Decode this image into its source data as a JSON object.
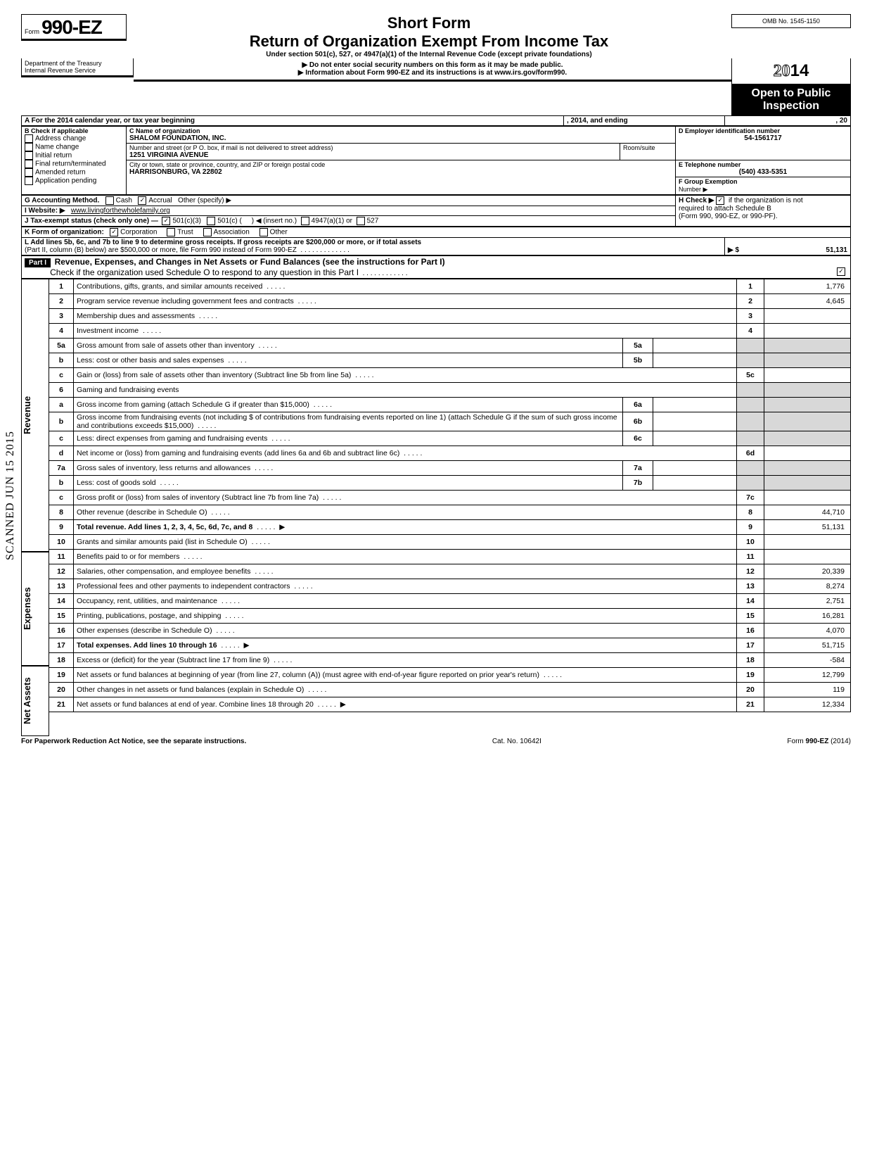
{
  "header": {
    "omb": "OMB No. 1545-1150",
    "form_word": "Form",
    "form_num": "990-EZ",
    "short_form": "Short Form",
    "title": "Return of Organization Exempt From Income Tax",
    "subtitle": "Under section 501(c), 527, or 4947(a)(1) of the Internal Revenue Code (except private foundations)",
    "instr1": "▶ Do not enter social security numbers on this form as it may be made public.",
    "instr2": "▶ Information about Form 990-EZ and its instructions is at www.irs.gov/form990.",
    "year_prefix": "20",
    "year": "14",
    "open1": "Open to Public",
    "open2": "Inspection",
    "dept1": "Department of the Treasury",
    "dept2": "Internal Revenue Service"
  },
  "scanned": "SCANNED  JUN 15 2015",
  "blockA": {
    "label": "A For the 2014 calendar year, or tax year beginning",
    "mid": ", 2014, and ending",
    "end": ", 20"
  },
  "blockB": {
    "hdr": "B Check if applicable",
    "opts": [
      "Address change",
      "Name change",
      "Initial return",
      "Final return/terminated",
      "Amended return",
      "Application pending"
    ]
  },
  "blockC": {
    "hdr": "C Name of organization",
    "name": "SHALOM FOUNDATION, INC.",
    "addr_hdr": "Number and street (or P O. box, if mail is not delivered to street address)",
    "room_hdr": "Room/suite",
    "addr": "1251 VIRGINIA AVENUE",
    "city_hdr": "City or town, state or province, country, and ZIP or foreign postal code",
    "city": "HARRISONBURG, VA 22802"
  },
  "blockD": {
    "hdr": "D Employer identification number",
    "val": "54-1561717"
  },
  "blockE": {
    "hdr": "E Telephone number",
    "val": "(540) 433-5351"
  },
  "blockF": {
    "hdr": "F Group Exemption",
    "num": "Number ▶"
  },
  "blockG": {
    "label": "G Accounting Method.",
    "cash": "Cash",
    "accrual": "Accrual",
    "other": "Other (specify) ▶"
  },
  "blockH": {
    "l1": "H Check ▶",
    "l2": "if the organization is not",
    "l3": "required to attach Schedule B",
    "l4": "(Form 990, 990-EZ, or 990-PF)."
  },
  "blockI": {
    "label": "I  Website: ▶",
    "val": "www.livingforthewholefamily.org"
  },
  "blockJ": {
    "label": "J Tax-exempt status (check only one) —",
    "o1": "501(c)(3)",
    "o2": "501(c) (",
    "o3": ") ◀ (insert no.)",
    "o4": "4947(a)(1) or",
    "o5": "527"
  },
  "blockK": {
    "label": "K Form of organization:",
    "o1": "Corporation",
    "o2": "Trust",
    "o3": "Association",
    "o4": "Other"
  },
  "blockL": {
    "l1": "L Add lines 5b, 6c, and 7b to line 9 to determine gross receipts. If gross receipts are $200,000 or more, or if total assets",
    "l2": "(Part II, column (B) below) are $500,000 or more, file Form 990 instead of Form 990-EZ",
    "arrow": "▶  $",
    "val": "51,131"
  },
  "part1": {
    "hdr": "Part I",
    "title": "Revenue, Expenses, and Changes in Net Assets or Fund Balances (see the instructions for Part I)",
    "check": "Check if the organization used Schedule O to respond to any question in this Part I"
  },
  "side": {
    "rev": "Revenue",
    "exp": "Expenses",
    "na": "Net Assets"
  },
  "lines": [
    {
      "n": "1",
      "d": "Contributions, gifts, grants, and similar amounts received",
      "r": "1",
      "v": "1,776"
    },
    {
      "n": "2",
      "d": "Program service revenue including government fees and contracts",
      "r": "2",
      "v": "4,645"
    },
    {
      "n": "3",
      "d": "Membership dues and assessments",
      "r": "3",
      "v": ""
    },
    {
      "n": "4",
      "d": "Investment income",
      "r": "4",
      "v": ""
    },
    {
      "n": "5a",
      "d": "Gross amount from sale of assets other than inventory",
      "in": "5a"
    },
    {
      "n": "b",
      "d": "Less: cost or other basis and sales expenses",
      "in": "5b"
    },
    {
      "n": "c",
      "d": "Gain or (loss) from sale of assets other than inventory (Subtract line 5b from line 5a)",
      "r": "5c",
      "v": ""
    },
    {
      "n": "6",
      "d": "Gaming and fundraising events"
    },
    {
      "n": "a",
      "d": "Gross income from gaming (attach Schedule G if greater than $15,000)",
      "in": "6a"
    },
    {
      "n": "b",
      "d": "Gross income from fundraising events (not including  $                       of contributions from fundraising events reported on line 1) (attach Schedule G if the sum of such gross income and contributions exceeds $15,000)",
      "in": "6b"
    },
    {
      "n": "c",
      "d": "Less: direct expenses from gaming and fundraising events",
      "in": "6c"
    },
    {
      "n": "d",
      "d": "Net income or (loss) from gaming and fundraising events (add lines 6a and 6b and subtract line 6c)",
      "r": "6d",
      "v": ""
    },
    {
      "n": "7a",
      "d": "Gross sales of inventory, less returns and allowances",
      "in": "7a"
    },
    {
      "n": "b",
      "d": "Less: cost of goods sold",
      "in": "7b"
    },
    {
      "n": "c",
      "d": "Gross profit or (loss) from sales of inventory (Subtract line 7b from line 7a)",
      "r": "7c",
      "v": ""
    },
    {
      "n": "8",
      "d": "Other revenue (describe in Schedule O)",
      "r": "8",
      "v": "44,710"
    },
    {
      "n": "9",
      "d": "Total revenue. Add lines 1, 2, 3, 4, 5c, 6d, 7c, and 8",
      "r": "9",
      "v": "51,131",
      "bold": true,
      "arrow": true
    },
    {
      "n": "10",
      "d": "Grants and similar amounts paid (list in Schedule O)",
      "r": "10",
      "v": ""
    },
    {
      "n": "11",
      "d": "Benefits paid to or for members",
      "r": "11",
      "v": ""
    },
    {
      "n": "12",
      "d": "Salaries, other compensation, and employee benefits",
      "r": "12",
      "v": "20,339"
    },
    {
      "n": "13",
      "d": "Professional fees and other payments to independent contractors",
      "r": "13",
      "v": "8,274"
    },
    {
      "n": "14",
      "d": "Occupancy, rent, utilities, and maintenance",
      "r": "14",
      "v": "2,751"
    },
    {
      "n": "15",
      "d": "Printing, publications, postage, and shipping",
      "r": "15",
      "v": "16,281"
    },
    {
      "n": "16",
      "d": "Other expenses (describe in Schedule O)",
      "r": "16",
      "v": "4,070"
    },
    {
      "n": "17",
      "d": "Total expenses. Add lines 10 through 16",
      "r": "17",
      "v": "51,715",
      "bold": true,
      "arrow": true
    },
    {
      "n": "18",
      "d": "Excess or (deficit) for the year (Subtract line 17 from line 9)",
      "r": "18",
      "v": "-584"
    },
    {
      "n": "19",
      "d": "Net assets or fund balances at beginning of year (from line 27, column (A)) (must agree with end-of-year figure reported on prior year's return)",
      "r": "19",
      "v": "12,799"
    },
    {
      "n": "20",
      "d": "Other changes in net assets or fund balances (explain in Schedule O)",
      "r": "20",
      "v": "119"
    },
    {
      "n": "21",
      "d": "Net assets or fund balances at end of year. Combine lines 18 through 20",
      "r": "21",
      "v": "12,334",
      "arrow": true
    }
  ],
  "footer": {
    "l": "For Paperwork Reduction Act Notice, see the separate instructions.",
    "c": "Cat. No. 10642I",
    "r": "Form 990-EZ (2014)"
  }
}
